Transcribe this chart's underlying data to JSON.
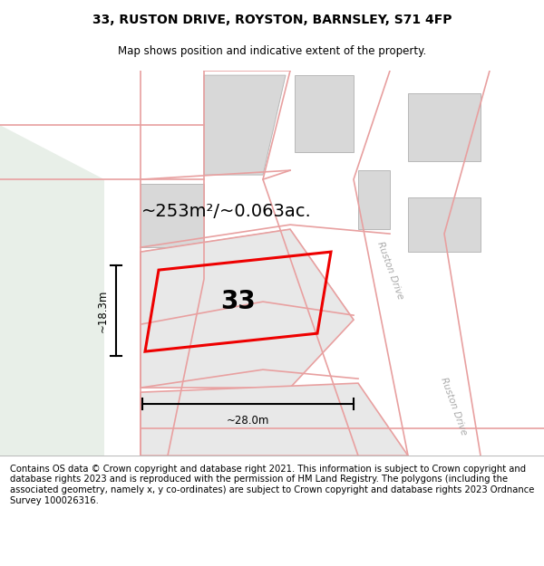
{
  "title": "33, RUSTON DRIVE, ROYSTON, BARNSLEY, S71 4FP",
  "subtitle": "Map shows position and indicative extent of the property.",
  "footer": "Contains OS data © Crown copyright and database right 2021. This information is subject to Crown copyright and database rights 2023 and is reproduced with the permission of HM Land Registry. The polygons (including the associated geometry, namely x, y co-ordinates) are subject to Crown copyright and database rights 2023 Ordnance Survey 100026316.",
  "map_bg": "#ffffff",
  "green_color": "#e8efe8",
  "road_line_color": "#e8a0a0",
  "building_color": "#d8d8d8",
  "building_edge_color": "#b8b8b8",
  "plot_color": "#ee0000",
  "plot_label": "33",
  "area_text": "~253m²/~0.063ac.",
  "width_text": "~28.0m",
  "height_text": "~18.3m",
  "ruston_drive_label": "Ruston Drive",
  "title_fontsize": 10,
  "subtitle_fontsize": 8.5,
  "footer_fontsize": 7.2,
  "road_lw": 1.2
}
